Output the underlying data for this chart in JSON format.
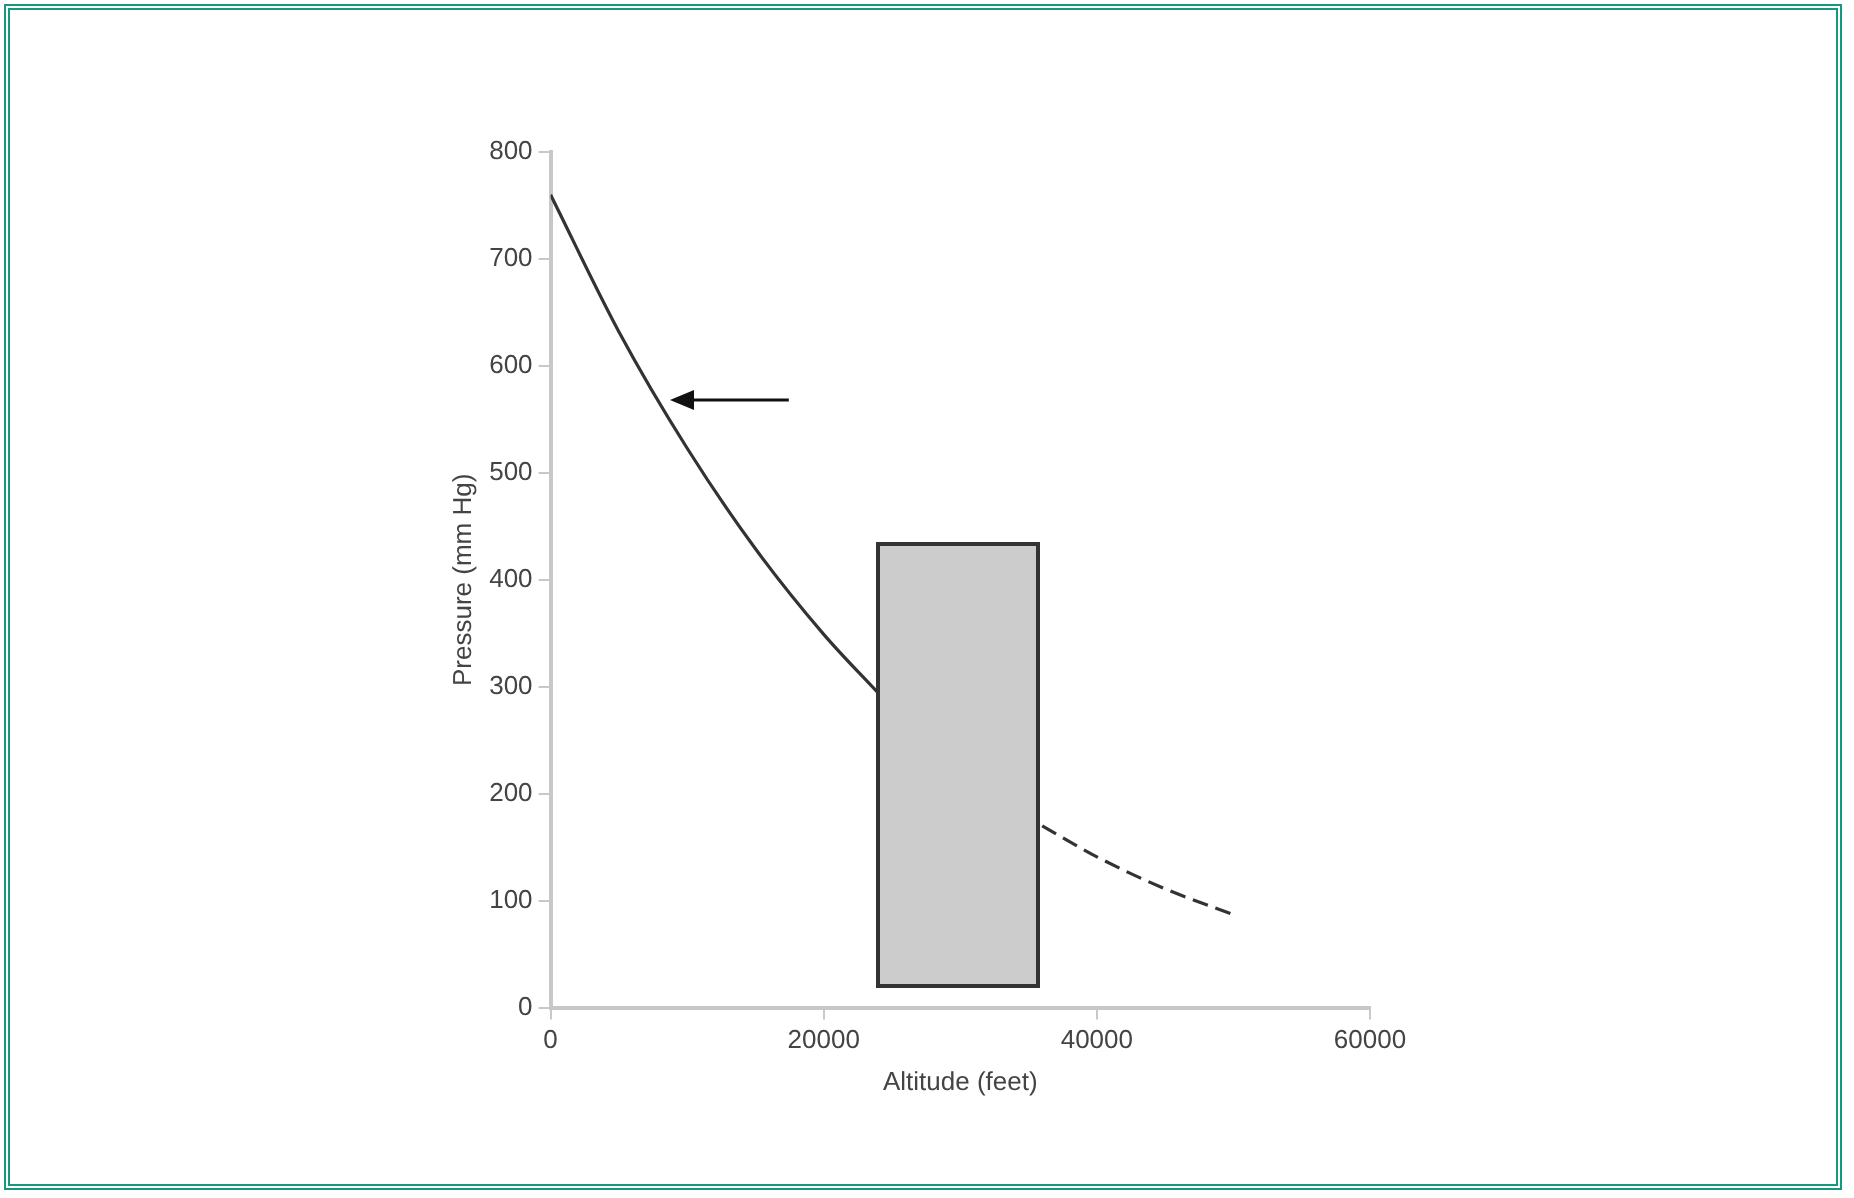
{
  "chart_data": {
    "type": "line",
    "xlabel": "Altitude (feet)",
    "ylabel": "Pressure (mm Hg)",
    "series": [
      {
        "color": "#333333",
        "x": [
          0,
          5000,
          10000,
          15000,
          20000,
          24000
        ],
        "values": [
          760,
          632,
          523,
          429,
          349,
          294
        ],
        "line_style": "solid"
      },
      {
        "color": "#333333",
        "x": [
          36000,
          40000,
          45000,
          50000
        ],
        "values": [
          170,
          141,
          111,
          87
        ],
        "line_style": "dashed"
      }
    ],
    "xlim": [
      0,
      60000
    ],
    "xticks": [
      0,
      20000,
      40000,
      60000
    ],
    "ylim": [
      0,
      800
    ],
    "yticks": [
      0,
      100,
      200,
      300,
      400,
      500,
      600,
      700,
      800
    ],
    "grid": false,
    "legend": false,
    "marker": "none"
  }
}
